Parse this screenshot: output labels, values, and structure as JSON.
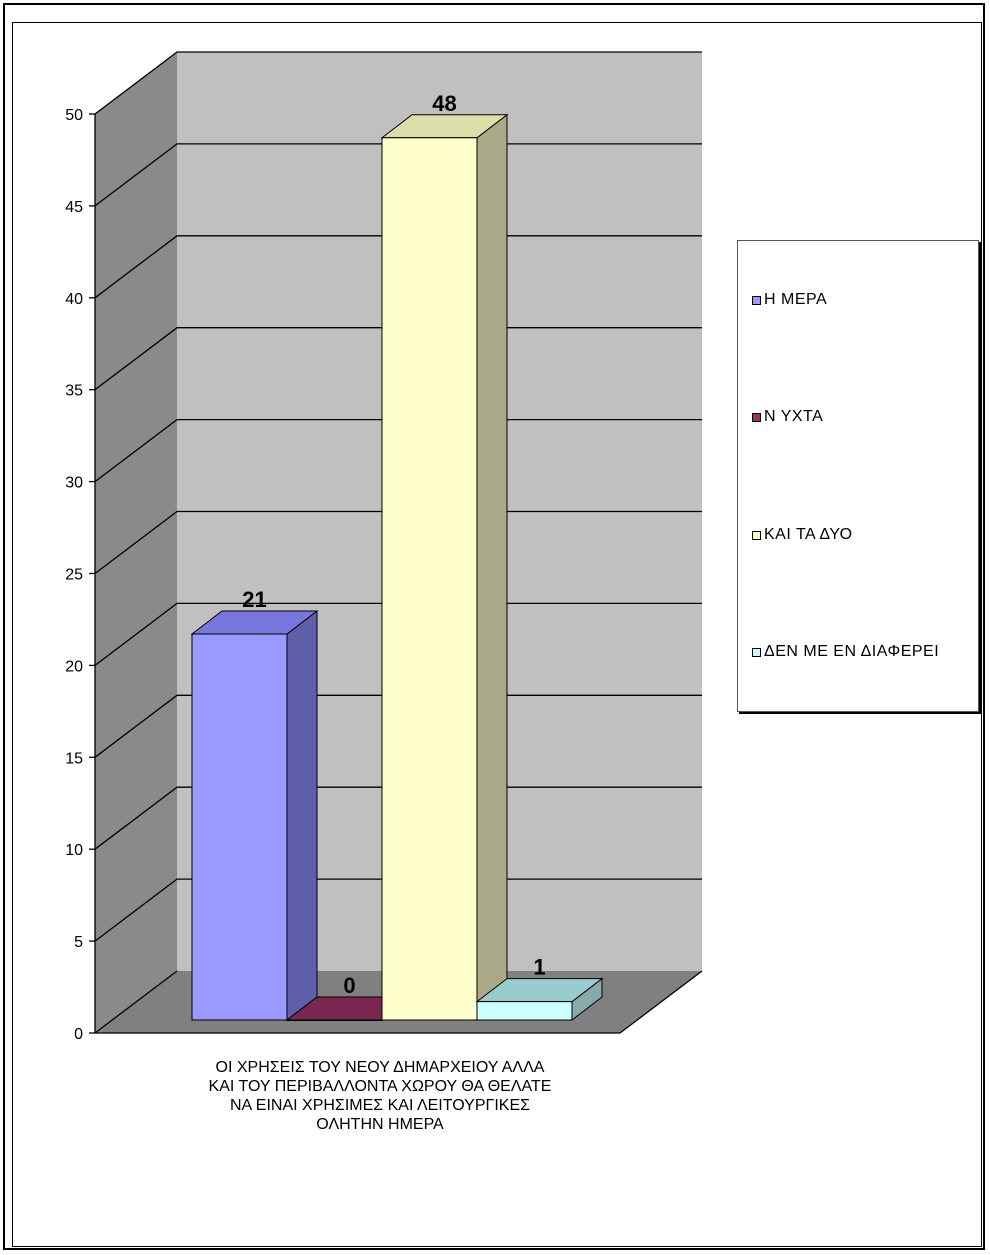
{
  "chart_data": {
    "type": "bar",
    "categories": [
      "ΟΙ ΧΡΗΣΕΙΣ ΤΟΥ ΝΕΟΥ ΔΗΜΑΡΧΕΙΟΥ ΑΛΛΑ ΚΑΙ ΤΟΥ ΠΕΡΙΒΑΛΛΟΝΤΑ ΧΩΡΟΥ ΘΑ ΘΕΛΑΤΕ ΝΑ ΕΙΝΑΙ ΧΡΗΣΙΜΕΣ ΚΑΙ ΛΕΙΤΟΥΡΓΙΚΕΣ ΟΛΗΤΗΝ ΗΜΕΡΑ"
    ],
    "category_lines": [
      "ΟΙ ΧΡΗΣΕΙΣ ΤΟΥ ΝΕΟΥ ΔΗΜΑΡΧΕΙΟΥ ΑΛΛΑ",
      "ΚΑΙ ΤΟΥ ΠΕΡΙΒΑΛΛΟΝΤΑ ΧΩΡΟΥ ΘΑ ΘΕΛΑΤΕ",
      "ΝΑ ΕΙΝΑΙ ΧΡΗΣΙΜΕΣ ΚΑΙ ΛΕΙΤΟΥΡΓΙΚΕΣ",
      "ΟΛΗΤΗΝ ΗΜΕΡΑ"
    ],
    "series": [
      {
        "name": "ΗΜΕΡΑ",
        "values": [
          21
        ],
        "color": "#9999ff",
        "side": "#5f5faa",
        "top": "#7777dd"
      },
      {
        "name": "ΝΥΧΤΑ",
        "values": [
          0
        ],
        "color": "#993366",
        "side": "#661a40",
        "top": "#7a2850"
      },
      {
        "name": "ΚΑΙ ΤΑ ΔΥΟ",
        "values": [
          48
        ],
        "color": "#ffffcc",
        "side": "#aaaa88",
        "top": "#dddda8"
      },
      {
        "name": "ΔΕΝ ΜΕ ΕΝΔΙΑΦΕΡΕΙ",
        "values": [
          1
        ],
        "color": "#ccffff",
        "side": "#88aaaa",
        "top": "#99cccc"
      }
    ],
    "data_labels": [
      "21",
      "0",
      "48",
      "1"
    ],
    "ylim": [
      0,
      50
    ],
    "yticks": [
      "0",
      "5",
      "10",
      "15",
      "20",
      "25",
      "30",
      "35",
      "40",
      "45",
      "50"
    ],
    "grid": true,
    "legend": "right",
    "wall_color": "#c0c0c0",
    "floor_color": "#808080"
  },
  "legend_labels": [
    "Η ΜΕΡΑ",
    "Ν ΥΧΤΑ",
    "ΚΑΙ ΤΑ ΔΥΟ",
    "ΔΕΝ ΜΕ ΕΝ ΔΙΑΦΕΡΕΙ"
  ]
}
